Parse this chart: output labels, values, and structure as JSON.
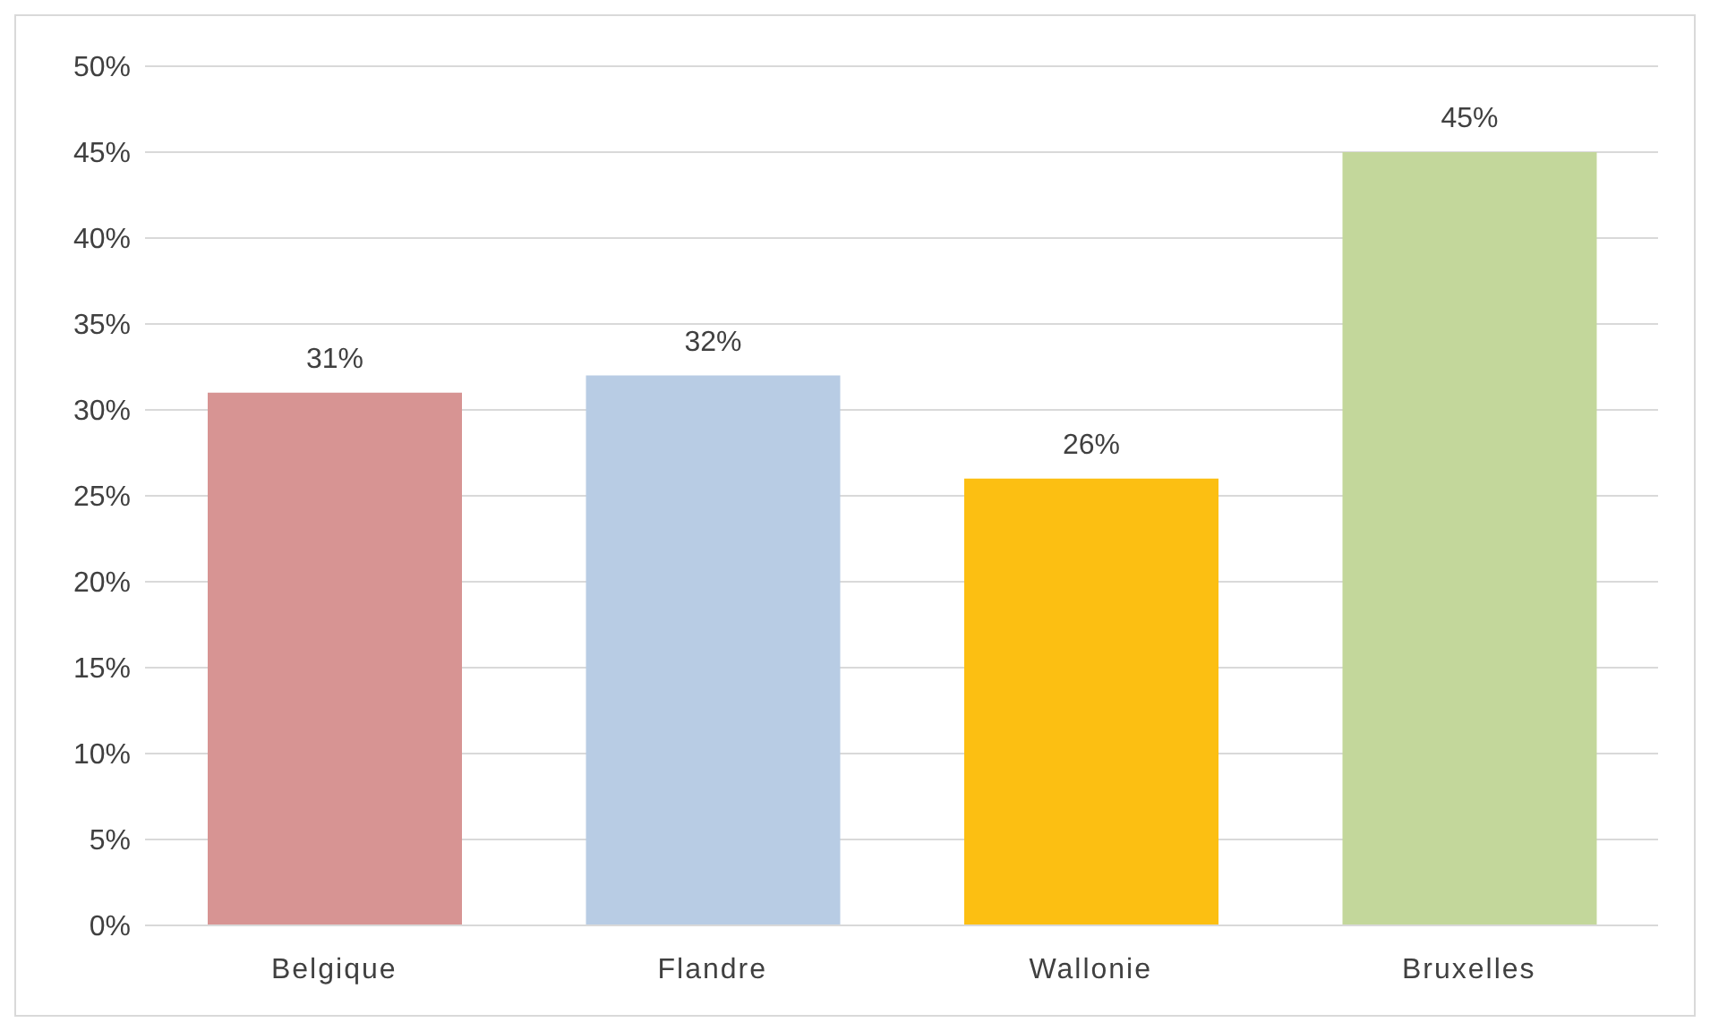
{
  "chart_data": {
    "type": "bar",
    "categories": [
      "Belgique",
      "Flandre",
      "Wallonie",
      "Bruxelles"
    ],
    "values": [
      31,
      32,
      26,
      45
    ],
    "colors": [
      "#d79493",
      "#b8cce4",
      "#fcbf12",
      "#c3d79b"
    ],
    "value_labels": [
      "31%",
      "32%",
      "26%",
      "45%"
    ],
    "ylim": [
      0,
      50
    ],
    "yticks": [
      {
        "value": 0,
        "label": "0%"
      },
      {
        "value": 5,
        "label": "5%"
      },
      {
        "value": 10,
        "label": "10%"
      },
      {
        "value": 15,
        "label": "15%"
      },
      {
        "value": 20,
        "label": "20%"
      },
      {
        "value": 25,
        "label": "25%"
      },
      {
        "value": 30,
        "label": "30%"
      },
      {
        "value": 35,
        "label": "35%"
      },
      {
        "value": 40,
        "label": "40%"
      },
      {
        "value": 45,
        "label": "45%"
      },
      {
        "value": 50,
        "label": "50%"
      }
    ],
    "grid": "y",
    "legend": false
  }
}
